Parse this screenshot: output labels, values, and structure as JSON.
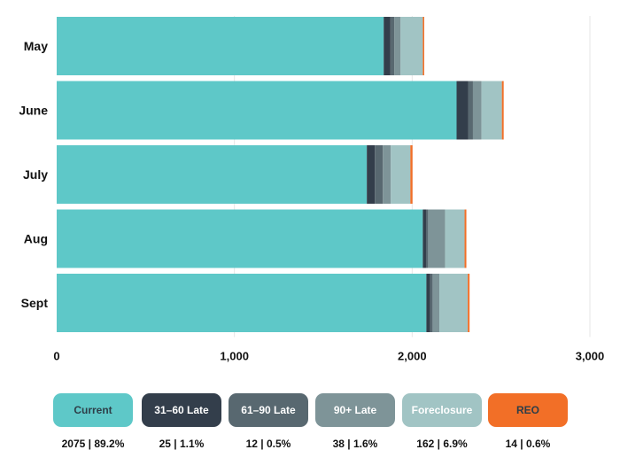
{
  "chart_data": {
    "type": "bar",
    "orientation": "horizontal",
    "stacked": true,
    "categories": [
      "May",
      "June",
      "July",
      "Aug",
      "Sept"
    ],
    "series": [
      {
        "name": "Current",
        "color": "#5ec8c8",
        "values": [
          1840,
          2250,
          1745,
          2060,
          2080
        ]
      },
      {
        "name": "31–60 Late",
        "color": "#333e4b",
        "values": [
          38,
          65,
          45,
          18,
          22
        ]
      },
      {
        "name": "61–90 Late",
        "color": "#586870",
        "values": [
          22,
          27,
          45,
          12,
          13
        ]
      },
      {
        "name": "90+ Late",
        "color": "#7e9498",
        "values": [
          35,
          48,
          45,
          95,
          38
        ]
      },
      {
        "name": "Foreclosure",
        "color": "#a1c4c4",
        "values": [
          125,
          115,
          110,
          110,
          160
        ]
      },
      {
        "name": "REO",
        "color": "#f26f27",
        "values": [
          8,
          10,
          12,
          10,
          10
        ]
      }
    ],
    "xlim": [
      0,
      3000
    ],
    "xticks": [
      0,
      1000,
      2000,
      3000
    ],
    "xtick_labels": [
      "0",
      "1,000",
      "2,000",
      "3,000"
    ],
    "grid": true,
    "legend_position": "bottom"
  },
  "legend": [
    {
      "label": "Current",
      "stat": "2075 | 89.2%",
      "bg": "#5ec8c8",
      "fg": "#2e3e48"
    },
    {
      "label": "31–60 Late",
      "stat": "25 | 1.1%",
      "bg": "#333e4b",
      "fg": "#ffffff"
    },
    {
      "label": "61–90 Late",
      "stat": "12 | 0.5%",
      "bg": "#586870",
      "fg": "#ffffff"
    },
    {
      "label": "90+ Late",
      "stat": "38 | 1.6%",
      "bg": "#7e9498",
      "fg": "#ffffff"
    },
    {
      "label": "Foreclosure",
      "stat": "162 | 6.9%",
      "bg": "#a1c4c4",
      "fg": "#ffffff"
    },
    {
      "label": "REO",
      "stat": "14 | 0.6%",
      "bg": "#f26f27",
      "fg": "#2e3e48"
    }
  ]
}
